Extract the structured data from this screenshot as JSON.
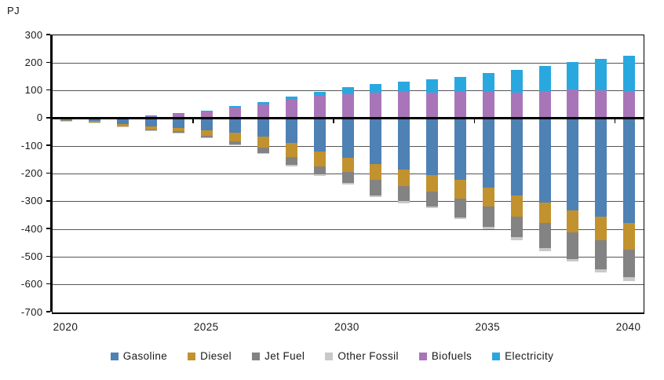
{
  "chart_data": {
    "type": "bar",
    "stacked": true,
    "unit_label": "PJ",
    "grid": true,
    "legend_position": "bottom",
    "ylim": [
      -700,
      300
    ],
    "y_ticks": [
      300,
      200,
      100,
      0,
      -100,
      -200,
      -300,
      -400,
      -500,
      -600,
      -700
    ],
    "x": [
      2020,
      2021,
      2022,
      2023,
      2024,
      2025,
      2026,
      2027,
      2028,
      2029,
      2030,
      2031,
      2032,
      2033,
      2034,
      2035,
      2036,
      2037,
      2038,
      2039,
      2040
    ],
    "x_tick_labels": [
      "2020",
      "2025",
      "2030",
      "2035",
      "2040"
    ],
    "x_tick_years": [
      2020,
      2025,
      2030,
      2035,
      2040
    ],
    "negative_stack_order": [
      "Gasoline",
      "Diesel",
      "Jet Fuel",
      "Other Fossil"
    ],
    "positive_stack_order": [
      "Biofuels",
      "Electricity"
    ],
    "series": [
      {
        "name": "Gasoline",
        "color": "#4E81B4",
        "values": [
          -3,
          -9,
          -20,
          -28,
          -33,
          -43,
          -52,
          -66,
          -88,
          -118,
          -142,
          -165,
          -185,
          -203,
          -222,
          -250,
          -279,
          -303,
          -331,
          -355,
          -378
        ]
      },
      {
        "name": "Diesel",
        "color": "#C2922F",
        "values": [
          -4,
          -5,
          -9,
          -12,
          -14,
          -21,
          -31,
          -40,
          -52,
          -56,
          -52,
          -57,
          -60,
          -62,
          -68,
          -67,
          -76,
          -75,
          -80,
          -85,
          -95
        ]
      },
      {
        "name": "Jet Fuel",
        "color": "#838383",
        "values": [
          -1,
          -1,
          -1,
          -3,
          -4,
          -4,
          -10,
          -20,
          -28,
          -27,
          -39,
          -55,
          -53,
          -52,
          -67,
          -73,
          -73,
          -90,
          -95,
          -104,
          -100
        ]
      },
      {
        "name": "Other Fossil",
        "color": "#C9C9C9",
        "values": [
          -1,
          -1,
          -1,
          -1,
          -2,
          -2,
          -2,
          -3,
          -4,
          -5,
          -5,
          -6,
          -7,
          -7,
          -7,
          -10,
          -12,
          -10,
          -10,
          -12,
          -13
        ]
      },
      {
        "name": "Biofuels",
        "color": "#A876B8",
        "values": [
          1,
          2,
          4,
          10,
          16,
          24,
          39,
          51,
          68,
          83,
          88,
          93,
          96,
          93,
          95,
          96,
          93,
          97,
          104,
          102,
          100
        ]
      },
      {
        "name": "Electricity",
        "color": "#29A8DF",
        "values": [
          0,
          1,
          1,
          2,
          3,
          4,
          5,
          7,
          10,
          13,
          25,
          32,
          37,
          47,
          55,
          68,
          82,
          93,
          99,
          114,
          127
        ]
      }
    ]
  }
}
